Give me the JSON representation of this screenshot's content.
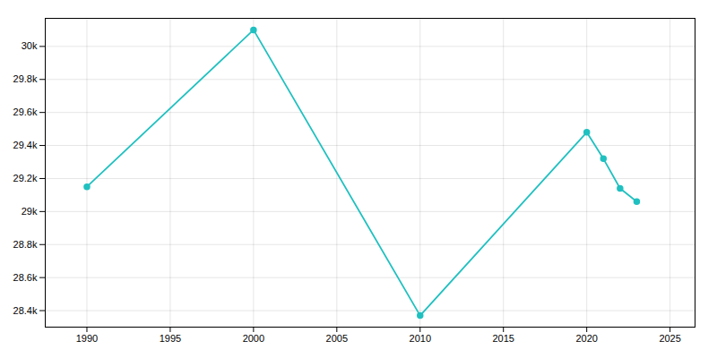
{
  "chart_data": {
    "type": "line",
    "x": [
      1990,
      2000,
      2010,
      2020,
      2021,
      2022,
      2023
    ],
    "values": [
      29150,
      30100,
      28370,
      29480,
      29320,
      29140,
      29060
    ],
    "color": "#20c0c0",
    "marker": "circle",
    "xlim": [
      1987.5,
      2026.5
    ],
    "ylim": [
      28300,
      30170
    ],
    "xticks": [
      1990,
      1995,
      2000,
      2005,
      2010,
      2015,
      2020,
      2025
    ],
    "yticks": [
      {
        "value": 28400,
        "label": "28.4k"
      },
      {
        "value": 28600,
        "label": "28.6k"
      },
      {
        "value": 28800,
        "label": "28.8k"
      },
      {
        "value": 29000,
        "label": "29k"
      },
      {
        "value": 29200,
        "label": "29.2k"
      },
      {
        "value": 29400,
        "label": "29.4k"
      },
      {
        "value": 29600,
        "label": "29.6k"
      },
      {
        "value": 29800,
        "label": "29.8k"
      },
      {
        "value": 30000,
        "label": "30k"
      }
    ],
    "grid": true
  }
}
